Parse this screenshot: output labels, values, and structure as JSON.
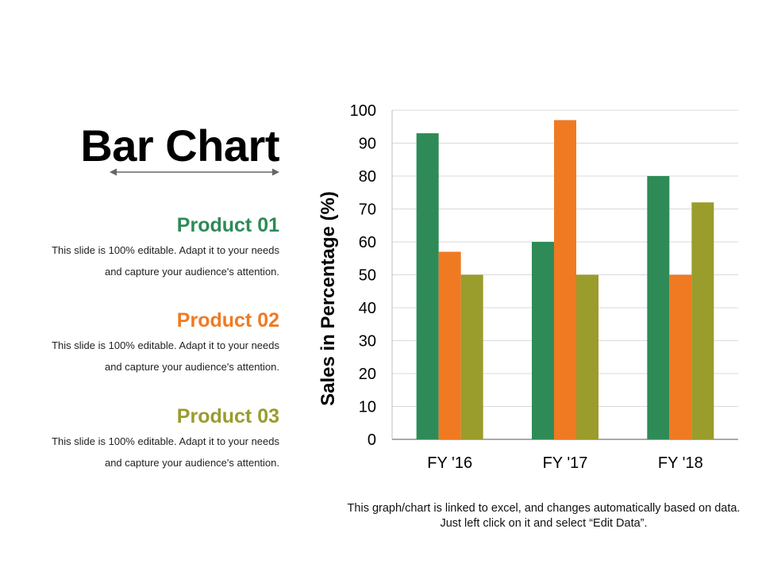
{
  "title": "Bar Chart",
  "products": [
    {
      "heading": "Product 01",
      "color": "#2e8b57",
      "description": "This slide is 100% editable. Adapt it to your needs and capture your audience's attention."
    },
    {
      "heading": "Product 02",
      "color": "#f07a22",
      "description": "This slide is 100% editable. Adapt it to your needs and capture your audience's attention."
    },
    {
      "heading": "Product 03",
      "color": "#9a9c2c",
      "description": "This slide is 100% editable. Adapt it to your needs and capture your audience's attention."
    }
  ],
  "note": "This graph/chart is linked to excel, and changes automatically based on data. Just left click on it and select “Edit Data”.",
  "chart_data": {
    "type": "bar",
    "categories": [
      "FY '16",
      "FY '17",
      "FY '18"
    ],
    "series": [
      {
        "values": [
          93,
          60,
          80
        ],
        "color": "#2e8b57"
      },
      {
        "values": [
          57,
          97,
          50
        ],
        "color": "#f07a22"
      },
      {
        "values": [
          50,
          50,
          72
        ],
        "color": "#9a9c2c"
      }
    ],
    "ylabel": "Sales in Percentage (%)",
    "ylim": [
      0,
      100
    ],
    "yticks": [
      0,
      10,
      20,
      30,
      40,
      50,
      60,
      70,
      80,
      90,
      100
    ],
    "grid": true,
    "legend": "none"
  }
}
